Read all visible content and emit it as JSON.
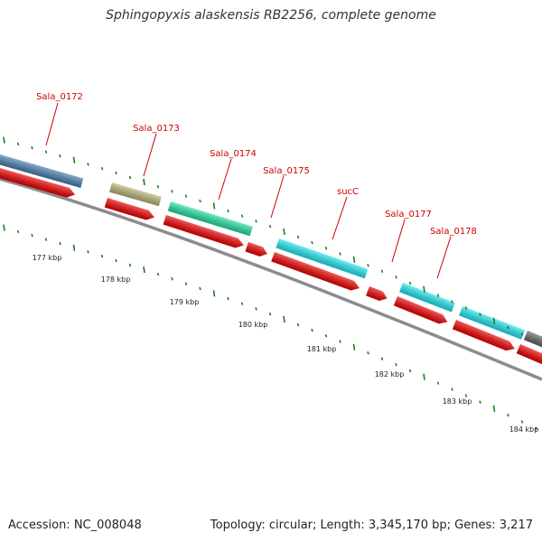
{
  "title": "Sphingopyxis alaskensis RB2256, complete genome",
  "footer": {
    "accession": "Accession: NC_008048",
    "summary": "Topology: circular; Length: 3,345,170 bp; Genes: 3,217"
  },
  "colors": {
    "backbone": "#8c8c8c",
    "label": "#cc0000",
    "cds_red": "#ee0000",
    "tick": "#1a7f1a"
  },
  "genes": [
    {
      "label": "Sala_0172",
      "color": "#4a7fb0"
    },
    {
      "label": "Sala_0173",
      "color": "#b7b779"
    },
    {
      "label": "Sala_0174",
      "color": "#23e0a0"
    },
    {
      "label": "Sala_0175",
      "color": null
    },
    {
      "label": "sucC",
      "color": "#22e6ee"
    },
    {
      "label": "Sala_0177",
      "color": "#22e6ee"
    },
    {
      "label": "Sala_0178",
      "color": "#22e6ee"
    }
  ],
  "kbp_labels": [
    "177 kbp",
    "178 kbp",
    "179 kbp",
    "180 kbp",
    "181 kbp",
    "182 kbp",
    "183 kbp",
    "184 kbp"
  ]
}
